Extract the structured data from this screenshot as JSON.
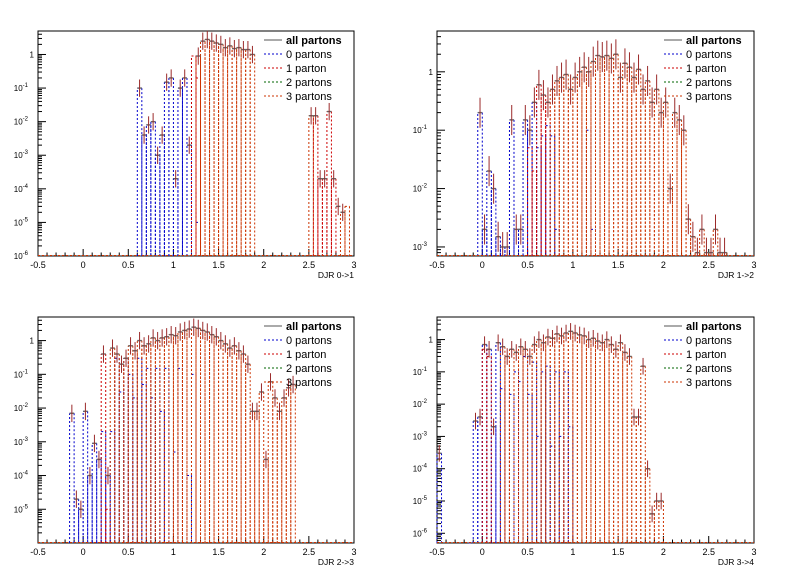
{
  "legend": {
    "entries": [
      {
        "label": "all partons",
        "color": "#555555",
        "dash": "solid",
        "bold": true
      },
      {
        "label": "0 partons",
        "color": "#0000cc",
        "dash": "dashed",
        "bold": false
      },
      {
        "label": "1 parton",
        "color": "#cc0000",
        "dash": "dashed",
        "bold": false
      },
      {
        "label": "2 partons",
        "color": "#006600",
        "dash": "dashed",
        "bold": false
      },
      {
        "label": "3 partons",
        "color": "#cc3300",
        "dash": "dashed",
        "bold": false
      }
    ]
  },
  "chart_data": [
    {
      "type": "histogram",
      "xlabel": "DJR 0->1",
      "xlim": [
        -0.5,
        3
      ],
      "ylim": [
        1e-06,
        5
      ],
      "log_y": true,
      "x_ticks": [
        "-0.5",
        "0",
        "0.5",
        "1",
        "1.5",
        "2",
        "2.5",
        "3"
      ],
      "y_ticks": [
        {
          "base": "1",
          "exp": ""
        },
        {
          "base": "10",
          "exp": "-1"
        },
        {
          "base": "10",
          "exp": "-2"
        },
        {
          "base": "10",
          "exp": "-3"
        },
        {
          "base": "10",
          "exp": "-4"
        },
        {
          "base": "10",
          "exp": "-5"
        },
        {
          "base": "10",
          "exp": "-6"
        }
      ],
      "bin_width": 0.05,
      "total": {
        "x": [
          0.55,
          0.6,
          0.65,
          0.7,
          0.75,
          0.8,
          0.85,
          0.9,
          0.95,
          1.0,
          1.05,
          1.1,
          1.15,
          1.2,
          1.25,
          1.3,
          1.35,
          1.4,
          1.45,
          1.5,
          1.55,
          1.6,
          1.65,
          1.7,
          1.75,
          1.8,
          1.85,
          2.5,
          2.55,
          2.6,
          2.65,
          2.7,
          2.75,
          2.8,
          2.85,
          2.9
        ],
        "y": [
          1e-06,
          0.1,
          0.004,
          0.008,
          0.01,
          0.001,
          0.004,
          0.15,
          0.2,
          0.0002,
          0.1,
          0.2,
          0.002,
          1e-06,
          0.9,
          2.5,
          2.8,
          2.5,
          2.2,
          2.0,
          1.6,
          1.8,
          1.5,
          1.6,
          1.4,
          1.4,
          1.0,
          0.015,
          0.015,
          0.0002,
          0.0002,
          0.02,
          0.0002,
          3e-05,
          2e-05,
          1e-06
        ]
      },
      "blue": {
        "x": [
          0.6,
          0.65,
          0.7,
          0.75,
          0.8,
          0.85,
          0.9,
          0.95,
          1.0,
          1.05,
          1.1,
          1.15,
          1.2,
          1.25
        ],
        "y": [
          0.1,
          0.004,
          0.008,
          0.01,
          0.001,
          0.004,
          0.15,
          0.2,
          0.0002,
          0.1,
          0.2,
          0.002,
          0.9,
          1e-05
        ]
      },
      "red": {
        "x": [
          1.2,
          1.25,
          2.55,
          2.6,
          2.65,
          2.7,
          2.75
        ],
        "y": [
          0.9,
          0.2,
          0.015,
          0.0002,
          0.0002,
          0.02,
          0.0002
        ]
      },
      "orange": {
        "x": [
          1.25,
          1.3,
          1.35,
          1.4,
          1.45,
          1.5,
          1.55,
          1.6,
          1.65,
          1.7,
          1.75,
          1.8,
          1.85,
          2.5,
          2.85,
          2.9
        ],
        "y": [
          0.9,
          2.5,
          2.8,
          2.5,
          2.2,
          2.0,
          1.6,
          1.8,
          1.5,
          1.6,
          1.4,
          1.4,
          1.0,
          0.015,
          2e-05,
          3e-05
        ]
      }
    },
    {
      "type": "histogram",
      "xlabel": "DJR 1->2",
      "xlim": [
        -0.5,
        3
      ],
      "ylim": [
        0.0007,
        5
      ],
      "log_y": true,
      "x_ticks": [
        "-0.5",
        "0",
        "0.5",
        "1",
        "1.5",
        "2",
        "2.5",
        "3"
      ],
      "y_ticks": [
        {
          "base": "1",
          "exp": ""
        },
        {
          "base": "10",
          "exp": "-1"
        },
        {
          "base": "10",
          "exp": "-2"
        },
        {
          "base": "10",
          "exp": "-3"
        }
      ],
      "bin_width": 0.05,
      "total": {
        "x": [
          -0.05,
          0.0,
          0.05,
          0.1,
          0.15,
          0.2,
          0.25,
          0.3,
          0.35,
          0.4,
          0.45,
          0.5,
          0.55,
          0.6,
          0.65,
          0.7,
          0.75,
          0.8,
          0.85,
          0.9,
          0.95,
          1.0,
          1.05,
          1.1,
          1.15,
          1.2,
          1.25,
          1.3,
          1.35,
          1.4,
          1.45,
          1.5,
          1.55,
          1.6,
          1.65,
          1.7,
          1.75,
          1.8,
          1.85,
          1.9,
          1.95,
          2.0,
          2.05,
          2.1,
          2.15,
          2.2,
          2.25,
          2.3,
          2.35,
          2.4,
          2.45,
          2.5,
          2.55,
          2.6,
          2.65
        ],
        "y": [
          0.2,
          0.002,
          0.02,
          0.01,
          0.0015,
          0.001,
          0.001,
          0.15,
          0.002,
          0.002,
          0.15,
          0.1,
          0.3,
          0.6,
          0.4,
          0.3,
          0.5,
          0.7,
          0.8,
          0.9,
          0.5,
          0.8,
          1.0,
          1.2,
          1.0,
          1.5,
          1.9,
          1.8,
          1.9,
          1.7,
          2.0,
          0.8,
          1.4,
          1.2,
          0.8,
          1.1,
          0.5,
          0.7,
          0.3,
          0.5,
          0.2,
          0.3,
          0.01,
          0.2,
          0.15,
          0.1,
          0.003,
          0.0015,
          0.0008,
          0.002,
          0.0008,
          0.0008,
          0.002,
          0.0008,
          0.0008
        ]
      },
      "blue": {
        "x": [
          -0.05,
          0.0,
          0.05,
          0.1,
          0.15,
          0.2,
          0.25,
          0.3,
          0.35,
          0.4,
          0.45,
          0.5,
          0.55,
          0.6,
          0.65,
          0.7,
          0.75,
          0.8,
          1.15,
          1.2
        ],
        "y": [
          0.2,
          0.002,
          0.02,
          0.01,
          0.0015,
          0.001,
          0.001,
          0.15,
          0.002,
          0.002,
          0.15,
          0.1,
          0.3,
          0.05,
          0.08,
          0.12,
          0.08,
          0.002,
          0.1,
          0.002
        ]
      },
      "red": {
        "x": [
          0.5,
          0.55,
          0.6,
          0.65,
          0.7
        ],
        "y": [
          0.05,
          0.02,
          0.6,
          0.4,
          0.3
        ]
      },
      "orange": {
        "x": [
          0.75,
          0.8,
          0.85,
          0.9,
          0.95,
          1.0,
          1.05,
          1.1,
          1.15,
          1.2,
          1.25,
          1.3,
          1.35,
          1.4,
          1.45,
          1.5,
          1.55,
          1.6,
          1.65,
          1.7,
          1.75,
          1.8,
          1.85,
          1.9,
          1.95,
          2.0,
          2.05,
          2.1,
          2.15,
          2.2,
          2.25,
          2.3,
          2.35,
          2.4,
          2.45,
          2.5,
          2.55,
          2.6,
          2.65
        ],
        "y": [
          0.5,
          0.7,
          0.8,
          0.9,
          0.5,
          0.8,
          1.0,
          1.2,
          1.0,
          1.5,
          1.9,
          1.8,
          1.9,
          1.7,
          2.0,
          0.8,
          1.4,
          1.2,
          0.8,
          1.1,
          0.5,
          0.7,
          0.3,
          0.5,
          0.2,
          0.3,
          0.01,
          0.2,
          0.15,
          0.1,
          0.003,
          0.0015,
          0.0008,
          0.002,
          0.0008,
          0.0008,
          0.002,
          0.0008,
          0.0008
        ]
      }
    },
    {
      "type": "histogram",
      "xlabel": "DJR 2->3",
      "xlim": [
        -0.5,
        3
      ],
      "ylim": [
        1e-06,
        5
      ],
      "log_y": true,
      "x_ticks": [
        "-0.5",
        "0",
        "0.5",
        "1",
        "1.5",
        "2",
        "2.5",
        "3"
      ],
      "y_ticks": [
        {
          "base": "1",
          "exp": ""
        },
        {
          "base": "10",
          "exp": "-1"
        },
        {
          "base": "10",
          "exp": "-2"
        },
        {
          "base": "10",
          "exp": "-3"
        },
        {
          "base": "10",
          "exp": "-4"
        },
        {
          "base": "10",
          "exp": "-5"
        }
      ],
      "bin_width": 0.05,
      "total": {
        "x": [
          -0.15,
          -0.1,
          -0.05,
          0.0,
          0.05,
          0.1,
          0.15,
          0.2,
          0.25,
          0.3,
          0.35,
          0.4,
          0.45,
          0.5,
          0.55,
          0.6,
          0.65,
          0.7,
          0.75,
          0.8,
          0.85,
          0.9,
          0.95,
          1.0,
          1.05,
          1.1,
          1.15,
          1.2,
          1.25,
          1.3,
          1.35,
          1.4,
          1.45,
          1.5,
          1.55,
          1.6,
          1.65,
          1.7,
          1.75,
          1.8,
          1.85,
          1.9,
          1.95,
          2.0,
          2.05,
          2.1,
          2.15,
          2.2,
          2.25,
          2.3
        ],
        "y": [
          0.007,
          2e-05,
          1e-05,
          0.008,
          0.0001,
          0.0009,
          0.0003,
          0.4,
          0.0001,
          0.6,
          0.4,
          0.2,
          0.3,
          0.7,
          0.5,
          1.0,
          0.7,
          0.8,
          1.2,
          1.0,
          1.2,
          1.3,
          1.5,
          1.4,
          1.8,
          2.0,
          2.2,
          2.5,
          2.3,
          2.0,
          1.8,
          1.5,
          1.3,
          1.0,
          0.8,
          0.6,
          0.7,
          0.5,
          0.4,
          0.2,
          0.008,
          0.008,
          0.03,
          0.0003,
          0.06,
          0.02,
          0.008,
          0.02,
          0.04,
          0.05
        ]
      },
      "blue": {
        "x": [
          -0.15,
          -0.1,
          -0.05,
          0.0,
          0.05,
          0.1,
          0.15,
          0.2,
          0.25,
          0.3,
          0.35,
          0.4,
          0.45,
          0.5,
          0.55,
          0.6,
          0.65,
          0.7,
          0.75,
          0.8,
          0.85,
          0.9,
          1.0,
          1.05,
          1.15,
          1.2
        ],
        "y": [
          0.007,
          2e-05,
          1e-05,
          0.008,
          0.0001,
          0.0009,
          0.0003,
          0.002,
          0.0001,
          0.002,
          0.3,
          0.03,
          0.3,
          0.1,
          0.02,
          0.3,
          0.05,
          0.15,
          0.02,
          0.15,
          0.008,
          0.15,
          0.0005,
          0.15,
          0.0001,
          0.1
        ]
      },
      "red": {
        "x": [
          0.2,
          0.25
        ],
        "y": [
          0.4,
          1e-05
        ]
      },
      "orange": {
        "x": [
          0.3,
          0.35,
          0.4,
          0.45,
          0.5,
          0.55,
          0.6,
          0.65,
          0.7,
          0.75,
          0.8,
          0.85,
          0.9,
          0.95,
          1.0,
          1.05,
          1.1,
          1.15,
          1.2,
          1.25,
          1.3,
          1.35,
          1.4,
          1.45,
          1.5,
          1.55,
          1.6,
          1.65,
          1.7,
          1.75,
          1.8,
          1.85,
          1.9,
          1.95,
          2.0,
          2.05,
          2.1,
          2.15,
          2.2,
          2.25,
          2.3
        ],
        "y": [
          0.6,
          0.4,
          0.2,
          0.3,
          0.7,
          0.5,
          1.0,
          0.7,
          0.8,
          1.2,
          1.0,
          1.2,
          1.3,
          1.5,
          1.4,
          1.8,
          2.0,
          2.2,
          2.5,
          2.3,
          2.0,
          1.8,
          1.5,
          1.3,
          1.0,
          0.8,
          0.6,
          0.7,
          0.5,
          0.4,
          0.2,
          0.008,
          0.008,
          0.03,
          0.0003,
          0.06,
          0.02,
          0.008,
          0.02,
          0.04,
          0.05
        ]
      }
    },
    {
      "type": "histogram",
      "xlabel": "DJR 3->4",
      "xlim": [
        -0.5,
        3
      ],
      "ylim": [
        5e-07,
        5
      ],
      "log_y": true,
      "x_ticks": [
        "-0.5",
        "0",
        "0.5",
        "1",
        "1.5",
        "2",
        "2.5",
        "3"
      ],
      "y_ticks": [
        {
          "base": "1",
          "exp": ""
        },
        {
          "base": "10",
          "exp": "-1"
        },
        {
          "base": "10",
          "exp": "-2"
        },
        {
          "base": "10",
          "exp": "-3"
        },
        {
          "base": "10",
          "exp": "-4"
        },
        {
          "base": "10",
          "exp": "-5"
        },
        {
          "base": "10",
          "exp": "-6"
        }
      ],
      "bin_width": 0.05,
      "total": {
        "x": [
          -0.5,
          -0.45,
          -0.4,
          -0.35,
          -0.3,
          -0.25,
          -0.2,
          -0.15,
          -0.1,
          -0.05,
          0.0,
          0.05,
          0.1,
          0.15,
          0.2,
          0.25,
          0.3,
          0.35,
          0.4,
          0.45,
          0.5,
          0.55,
          0.6,
          0.65,
          0.7,
          0.75,
          0.8,
          0.85,
          0.9,
          0.95,
          1.0,
          1.05,
          1.1,
          1.15,
          1.2,
          1.25,
          1.3,
          1.35,
          1.4,
          1.45,
          1.5,
          1.55,
          1.6,
          1.65,
          1.7,
          1.75,
          1.8,
          1.85,
          1.9,
          1.95
        ],
        "y": [
          0.0003,
          5e-07,
          5e-07,
          5e-07,
          5e-07,
          5e-07,
          5e-07,
          5e-07,
          0.003,
          0.004,
          0.7,
          0.5,
          0.002,
          0.8,
          0.6,
          0.3,
          0.5,
          0.4,
          0.6,
          0.5,
          0.3,
          0.7,
          1.0,
          0.8,
          1.2,
          1.1,
          1.5,
          1.3,
          1.6,
          1.8,
          1.6,
          1.4,
          1.3,
          1.0,
          1.1,
          0.9,
          0.8,
          1.0,
          0.7,
          0.5,
          0.8,
          0.4,
          0.3,
          0.004,
          0.004,
          0.15,
          0.0001,
          4e-06,
          1e-05,
          1e-05
        ]
      },
      "blue": {
        "x": [
          -0.5,
          -0.15,
          -0.1,
          -0.05,
          0.0,
          0.05,
          0.1,
          0.15,
          0.2,
          0.25,
          0.3,
          0.35,
          0.4,
          0.45,
          0.5,
          0.55,
          0.6,
          0.65,
          0.7,
          0.75,
          0.8,
          0.85,
          0.9,
          0.95
        ],
        "y": [
          0.0003,
          5e-07,
          0.003,
          0.004,
          0.7,
          0.5,
          0.002,
          0.8,
          0.03,
          0.3,
          0.02,
          0.1,
          0.05,
          0.3,
          0.02,
          0.2,
          0.001,
          0.1,
          0.15,
          0.0005,
          0.1,
          0.001,
          0.1,
          0.002
        ]
      },
      "red": {
        "x": [
          0.0,
          0.05
        ],
        "y": [
          0.5,
          0.3
        ]
      },
      "orange": {
        "x": [
          0.2,
          0.25,
          0.3,
          0.35,
          0.4,
          0.45,
          0.5,
          0.55,
          0.6,
          0.65,
          0.7,
          0.75,
          0.8,
          0.85,
          0.9,
          0.95,
          1.0,
          1.05,
          1.1,
          1.15,
          1.2,
          1.25,
          1.3,
          1.35,
          1.4,
          1.45,
          1.5,
          1.55,
          1.6,
          1.65,
          1.7,
          1.75,
          1.8,
          1.85,
          1.9,
          1.95
        ],
        "y": [
          0.6,
          0.3,
          0.5,
          0.4,
          0.6,
          0.5,
          0.3,
          0.7,
          1.0,
          0.8,
          1.2,
          1.1,
          1.5,
          1.3,
          1.6,
          1.8,
          1.6,
          1.4,
          1.3,
          1.0,
          1.1,
          0.9,
          0.8,
          1.0,
          0.7,
          0.5,
          0.8,
          0.4,
          0.3,
          0.004,
          0.004,
          0.15,
          0.0001,
          4e-06,
          1e-05,
          1e-05
        ]
      }
    }
  ]
}
